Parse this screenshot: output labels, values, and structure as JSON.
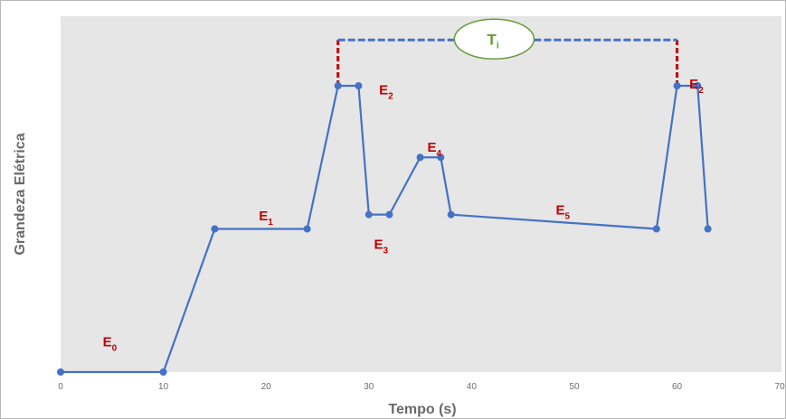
{
  "chart_data": {
    "type": "line",
    "xlabel": "Tempo (s)",
    "ylabel": "Grandeza Elétrica",
    "xlim": [
      0,
      70
    ],
    "ylim": [
      0,
      100
    ],
    "x_ticks": [
      "0",
      "10",
      "20",
      "30",
      "40",
      "50",
      "60",
      "70"
    ],
    "grid": false,
    "background": "#e6e6e6",
    "line_color": "#4472c4",
    "marker_color": "#4472c4",
    "series": [
      {
        "x": [
          0,
          10,
          15,
          24,
          27,
          29,
          30,
          32,
          35,
          37,
          38,
          58,
          60,
          62,
          63
        ],
        "y": [
          0,
          0,
          50,
          50,
          100,
          100,
          55,
          55,
          75,
          75,
          55,
          50,
          100,
          100,
          50
        ]
      }
    ],
    "annotations": {
      "states": [
        {
          "base": "E",
          "sub": "0",
          "x": 4.1,
          "y": 9,
          "color": "#c00000"
        },
        {
          "base": "E",
          "sub": "1",
          "x": 19.3,
          "y": 53,
          "color": "#c00000"
        },
        {
          "base": "E",
          "sub": "2",
          "x": 31.0,
          "y": 97,
          "color": "#c00000"
        },
        {
          "base": "E",
          "sub": "3",
          "x": 30.5,
          "y": 43,
          "color": "#c00000"
        },
        {
          "base": "E",
          "sub": "4",
          "x": 35.7,
          "y": 77,
          "color": "#c00000"
        },
        {
          "base": "E",
          "sub": "5",
          "x": 48.2,
          "y": 55,
          "color": "#c00000"
        },
        {
          "base": "E",
          "sub": "2",
          "x": 61.2,
          "y": 99,
          "color": "#c00000"
        }
      ],
      "interval": {
        "base": "T",
        "sub": "i",
        "x_start": 27,
        "x_end": 60,
        "y_level": 116,
        "label_x": 42.2,
        "drop_color": "#c00000",
        "bracket_color": "#4472c4",
        "ellipse_stroke": "#6a9b3a",
        "label_color": "#6a9b3a"
      }
    }
  }
}
